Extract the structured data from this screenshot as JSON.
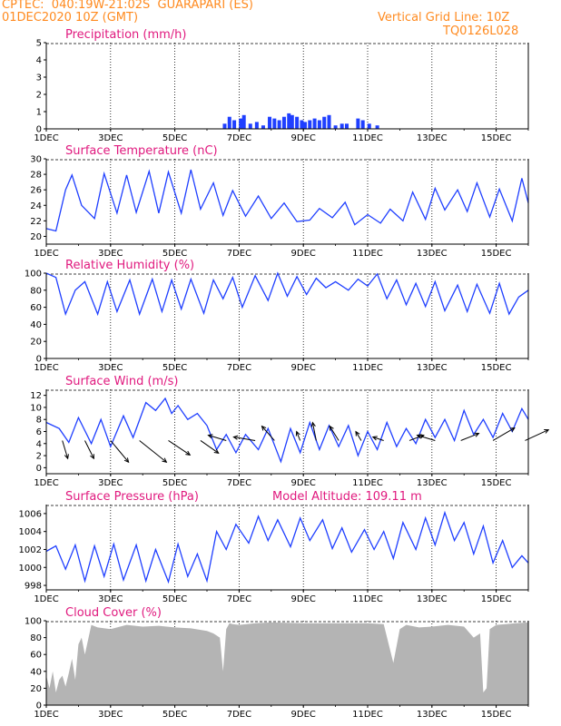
{
  "header": {
    "line1": "CPTEC:  040:19W-21:02S  GUARAPARI (ES)",
    "line2": "01DEC2020 10Z (GMT)",
    "grid_note": "Vertical Grid Line: 10Z",
    "code": "TQ0126L028"
  },
  "x_axis": {
    "day_start": 1,
    "day_end": 16,
    "ticks": [
      {
        "day": 1,
        "label": "1DEC"
      },
      {
        "day": 3,
        "label": "3DEC"
      },
      {
        "day": 5,
        "label": "5DEC"
      },
      {
        "day": 7,
        "label": "7DEC"
      },
      {
        "day": 9,
        "label": "9DEC"
      },
      {
        "day": 11,
        "label": "11DEC"
      },
      {
        "day": 13,
        "label": "13DEC"
      },
      {
        "day": 15,
        "label": "15DEC"
      }
    ]
  },
  "chart_data": [
    {
      "id": "precip",
      "type": "bar",
      "title": "Precipitation (mm/h)",
      "ylim": [
        0,
        5
      ],
      "yticks": [
        0,
        1,
        2,
        3,
        4,
        5
      ],
      "color": "#1f3fff",
      "bars": [
        {
          "day": 6.55,
          "value": 0.3
        },
        {
          "day": 6.7,
          "value": 0.7
        },
        {
          "day": 6.85,
          "value": 0.5
        },
        {
          "day": 7.05,
          "value": 0.6
        },
        {
          "day": 7.15,
          "value": 0.8
        },
        {
          "day": 7.35,
          "value": 0.3
        },
        {
          "day": 7.55,
          "value": 0.4
        },
        {
          "day": 7.75,
          "value": 0.2
        },
        {
          "day": 7.95,
          "value": 0.7
        },
        {
          "day": 8.1,
          "value": 0.6
        },
        {
          "day": 8.25,
          "value": 0.5
        },
        {
          "day": 8.4,
          "value": 0.7
        },
        {
          "day": 8.55,
          "value": 0.9
        },
        {
          "day": 8.65,
          "value": 0.8
        },
        {
          "day": 8.8,
          "value": 0.7
        },
        {
          "day": 8.95,
          "value": 0.5
        },
        {
          "day": 9.05,
          "value": 0.4
        },
        {
          "day": 9.2,
          "value": 0.5
        },
        {
          "day": 9.35,
          "value": 0.6
        },
        {
          "day": 9.5,
          "value": 0.5
        },
        {
          "day": 9.65,
          "value": 0.7
        },
        {
          "day": 9.8,
          "value": 0.8
        },
        {
          "day": 10.0,
          "value": 0.2
        },
        {
          "day": 10.2,
          "value": 0.3
        },
        {
          "day": 10.35,
          "value": 0.3
        },
        {
          "day": 10.7,
          "value": 0.6
        },
        {
          "day": 10.85,
          "value": 0.5
        },
        {
          "day": 11.05,
          "value": 0.3
        },
        {
          "day": 11.3,
          "value": 0.2
        }
      ]
    },
    {
      "id": "temp",
      "type": "line",
      "title": "Surface Temperature (nC)",
      "ylim": [
        19,
        30
      ],
      "yticks": [
        20,
        22,
        24,
        26,
        28,
        30
      ],
      "color": "#1f3fff",
      "x": [
        1.0,
        1.3,
        1.6,
        1.8,
        2.1,
        2.5,
        2.8,
        3.2,
        3.5,
        3.8,
        4.2,
        4.5,
        4.8,
        5.2,
        5.5,
        5.8,
        6.2,
        6.5,
        6.8,
        7.2,
        7.6,
        8.0,
        8.4,
        8.8,
        9.2,
        9.5,
        9.9,
        10.3,
        10.6,
        11.0,
        11.4,
        11.7,
        12.1,
        12.4,
        12.8,
        13.1,
        13.4,
        13.8,
        14.1,
        14.4,
        14.8,
        15.1,
        15.5,
        15.8,
        16.0
      ],
      "y": [
        21.0,
        20.7,
        26.0,
        27.9,
        24.0,
        22.3,
        28.1,
        23.0,
        27.9,
        23.1,
        28.4,
        23.0,
        28.3,
        23.0,
        28.6,
        23.5,
        26.9,
        22.7,
        25.9,
        22.6,
        25.2,
        22.3,
        24.3,
        21.9,
        22.1,
        23.6,
        22.4,
        24.4,
        21.5,
        22.8,
        21.7,
        23.5,
        22.0,
        25.7,
        22.2,
        26.2,
        23.4,
        26.0,
        23.2,
        26.9,
        22.5,
        26.1,
        22.0,
        27.5,
        24.3
      ]
    },
    {
      "id": "rh",
      "type": "line",
      "title": "Relative Humidity (%)",
      "ylim": [
        0,
        100
      ],
      "yticks": [
        0,
        20,
        40,
        60,
        80,
        100
      ],
      "color": "#1f3fff",
      "x": [
        1.0,
        1.3,
        1.6,
        1.9,
        2.2,
        2.6,
        2.9,
        3.2,
        3.6,
        3.9,
        4.3,
        4.6,
        4.9,
        5.2,
        5.5,
        5.9,
        6.2,
        6.5,
        6.8,
        7.1,
        7.5,
        7.9,
        8.2,
        8.5,
        8.8,
        9.1,
        9.4,
        9.7,
        10.0,
        10.4,
        10.7,
        11.0,
        11.3,
        11.6,
        11.9,
        12.2,
        12.5,
        12.8,
        13.1,
        13.4,
        13.8,
        14.1,
        14.4,
        14.8,
        15.1,
        15.4,
        15.7,
        16.0
      ],
      "y": [
        100,
        95,
        52,
        80,
        90,
        52,
        90,
        55,
        92,
        52,
        93,
        55,
        92,
        58,
        93,
        53,
        92,
        70,
        95,
        60,
        97,
        68,
        100,
        73,
        96,
        75,
        94,
        83,
        90,
        80,
        93,
        85,
        99,
        70,
        92,
        63,
        88,
        61,
        90,
        56,
        86,
        55,
        87,
        53,
        88,
        52,
        72,
        80
      ]
    },
    {
      "id": "wind",
      "type": "line",
      "title": "Surface Wind (m/s)",
      "ylim": [
        -1,
        13
      ],
      "yticks": [
        0,
        2,
        4,
        6,
        8,
        10,
        12
      ],
      "color": "#1f3fff",
      "x": [
        1.0,
        1.4,
        1.7,
        2.0,
        2.4,
        2.7,
        3.0,
        3.4,
        3.7,
        4.1,
        4.4,
        4.7,
        4.9,
        5.1,
        5.4,
        5.7,
        6.0,
        6.3,
        6.6,
        6.9,
        7.2,
        7.6,
        7.9,
        8.3,
        8.6,
        8.9,
        9.2,
        9.5,
        9.8,
        10.1,
        10.4,
        10.7,
        11.0,
        11.3,
        11.6,
        11.9,
        12.2,
        12.5,
        12.8,
        13.1,
        13.4,
        13.7,
        14.0,
        14.3,
        14.6,
        14.9,
        15.2,
        15.5,
        15.8,
        16.0
      ],
      "y": [
        7.5,
        6.5,
        4.2,
        8.3,
        4.0,
        8.0,
        3.5,
        8.6,
        5.0,
        10.8,
        9.5,
        11.5,
        9.0,
        10.3,
        8.0,
        9.0,
        7.0,
        3.0,
        5.5,
        2.5,
        5.5,
        3.0,
        6.5,
        1.0,
        6.5,
        2.5,
        7.5,
        3.0,
        7.0,
        3.5,
        7.0,
        2.0,
        6.0,
        3.0,
        7.5,
        3.5,
        6.5,
        4.0,
        8.0,
        5.0,
        8.0,
        4.5,
        9.5,
        5.5,
        8.0,
        5.0,
        9.0,
        6.0,
        9.8,
        8.0
      ],
      "arrows": [
        {
          "day": 1.5,
          "u": 0.3,
          "v": -1.0
        },
        {
          "day": 2.2,
          "u": 0.5,
          "v": -1.0
        },
        {
          "day": 3.0,
          "u": 1.0,
          "v": -1.2
        },
        {
          "day": 3.9,
          "u": 1.5,
          "v": -1.2
        },
        {
          "day": 4.8,
          "u": 1.2,
          "v": -0.8
        },
        {
          "day": 5.8,
          "u": 1.0,
          "v": -0.7
        },
        {
          "day": 6.6,
          "u": -1.0,
          "v": 0.3
        },
        {
          "day": 7.5,
          "u": -1.2,
          "v": 0.2
        },
        {
          "day": 8.1,
          "u": -0.7,
          "v": 0.8
        },
        {
          "day": 8.9,
          "u": -0.2,
          "v": 0.5
        },
        {
          "day": 9.4,
          "u": -0.2,
          "v": 1.0
        },
        {
          "day": 10.1,
          "u": -0.5,
          "v": 0.8
        },
        {
          "day": 10.8,
          "u": -0.3,
          "v": 0.5
        },
        {
          "day": 11.5,
          "u": -0.6,
          "v": 0.2
        },
        {
          "day": 12.3,
          "u": 0.8,
          "v": 0.3
        },
        {
          "day": 13.1,
          "u": -1.0,
          "v": 0.3
        },
        {
          "day": 13.9,
          "u": 1.0,
          "v": 0.4
        },
        {
          "day": 14.9,
          "u": 1.2,
          "v": 0.7
        },
        {
          "day": 15.9,
          "u": 1.3,
          "v": 0.6
        }
      ]
    },
    {
      "id": "pressure",
      "type": "line",
      "title": "Surface Pressure (hPa)",
      "subtitle": "Model Altitude: 109.11 m",
      "ylim": [
        997.5,
        1007
      ],
      "yticks": [
        998,
        1000,
        1002,
        1004,
        1006
      ],
      "color": "#1f3fff",
      "x": [
        1.0,
        1.3,
        1.6,
        1.9,
        2.2,
        2.5,
        2.8,
        3.1,
        3.4,
        3.8,
        4.1,
        4.4,
        4.8,
        5.1,
        5.4,
        5.7,
        6.0,
        6.3,
        6.6,
        6.9,
        7.3,
        7.6,
        7.9,
        8.2,
        8.6,
        8.9,
        9.2,
        9.6,
        9.9,
        10.2,
        10.5,
        10.9,
        11.2,
        11.5,
        11.8,
        12.1,
        12.5,
        12.8,
        13.1,
        13.4,
        13.7,
        14.0,
        14.3,
        14.6,
        14.9,
        15.2,
        15.5,
        15.8,
        16.0
      ],
      "y": [
        1001.8,
        1002.4,
        999.8,
        1002.5,
        998.5,
        1002.4,
        999.0,
        1002.6,
        998.6,
        1002.5,
        998.5,
        1002.0,
        998.4,
        1002.6,
        999.0,
        1001.5,
        998.5,
        1004.0,
        1002.0,
        1004.8,
        1002.7,
        1005.7,
        1003.0,
        1005.3,
        1002.3,
        1005.5,
        1003.0,
        1005.3,
        1002.1,
        1004.4,
        1001.7,
        1004.2,
        1002.0,
        1004.0,
        1001.0,
        1005.0,
        1002.0,
        1005.5,
        1002.5,
        1006.1,
        1003.0,
        1005.0,
        1001.5,
        1004.6,
        1000.5,
        1003.0,
        1000.0,
        1001.3,
        1000.5
      ]
    },
    {
      "id": "cloud",
      "type": "area",
      "title": "Cloud Cover (%)",
      "ylim": [
        0,
        100
      ],
      "yticks": [
        0,
        20,
        40,
        60,
        80,
        100
      ],
      "color": "#b4b4b4",
      "x": [
        1.0,
        1.1,
        1.2,
        1.3,
        1.4,
        1.5,
        1.6,
        1.7,
        1.8,
        1.9,
        2.0,
        2.1,
        2.2,
        2.4,
        2.6,
        3.0,
        3.5,
        4.0,
        4.5,
        5.0,
        5.5,
        6.0,
        6.2,
        6.4,
        6.5,
        6.6,
        6.7,
        6.8,
        7.0,
        7.5,
        8.0,
        9.0,
        10.0,
        11.0,
        11.5,
        11.8,
        12.0,
        12.2,
        12.6,
        13.0,
        13.5,
        14.0,
        14.3,
        14.5,
        14.6,
        14.7,
        14.8,
        15.0,
        15.3,
        15.6,
        16.0
      ],
      "y": [
        35,
        20,
        40,
        15,
        30,
        35,
        22,
        38,
        55,
        30,
        72,
        80,
        60,
        95,
        92,
        90,
        95,
        93,
        94,
        92,
        91,
        88,
        85,
        80,
        40,
        90,
        97,
        96,
        95,
        97,
        98,
        97,
        97,
        97,
        96,
        50,
        90,
        95,
        92,
        93,
        95,
        93,
        80,
        85,
        15,
        20,
        90,
        95,
        96,
        97,
        98
      ]
    }
  ]
}
